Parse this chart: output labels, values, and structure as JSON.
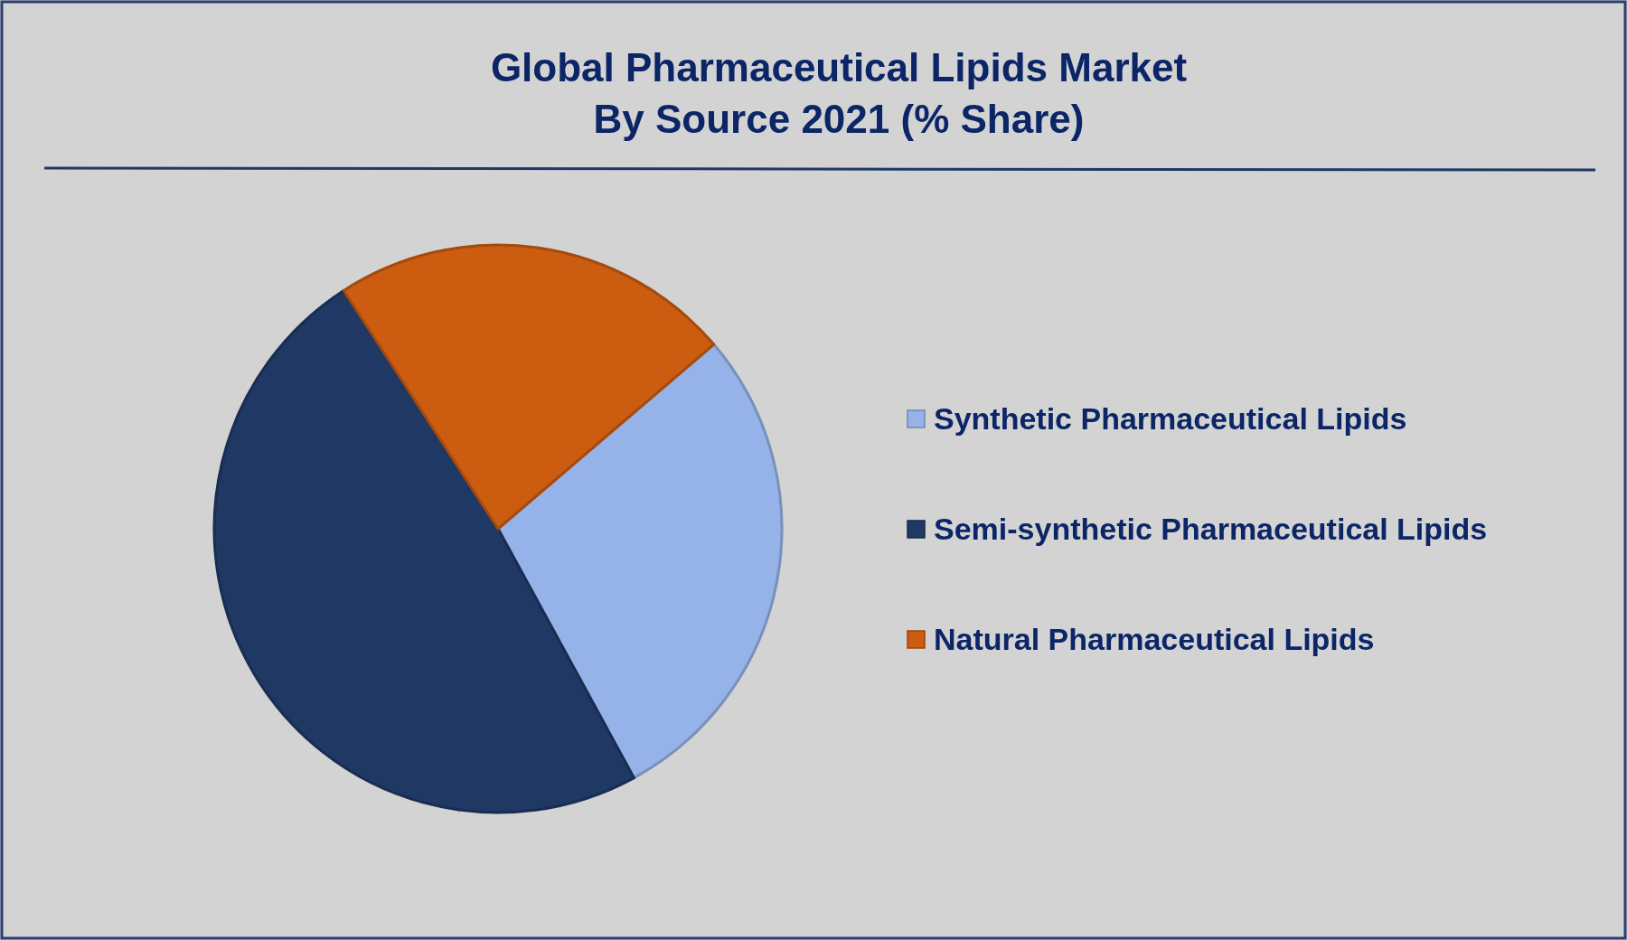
{
  "chart_data": {
    "type": "pie",
    "title": "Global Pharmaceutical Lipids Market\nBy Source 2021 (% Share)",
    "categories": [
      "Synthetic Pharmaceutical Lipids",
      "Semi-synthetic Pharmaceutical Lipids",
      "Natural Pharmaceutical Lipids"
    ],
    "values": [
      28.3,
      48.8,
      22.9
    ],
    "colors": [
      "#95b3e8",
      "#1f3864",
      "#cc5c10"
    ],
    "legend": "right"
  }
}
